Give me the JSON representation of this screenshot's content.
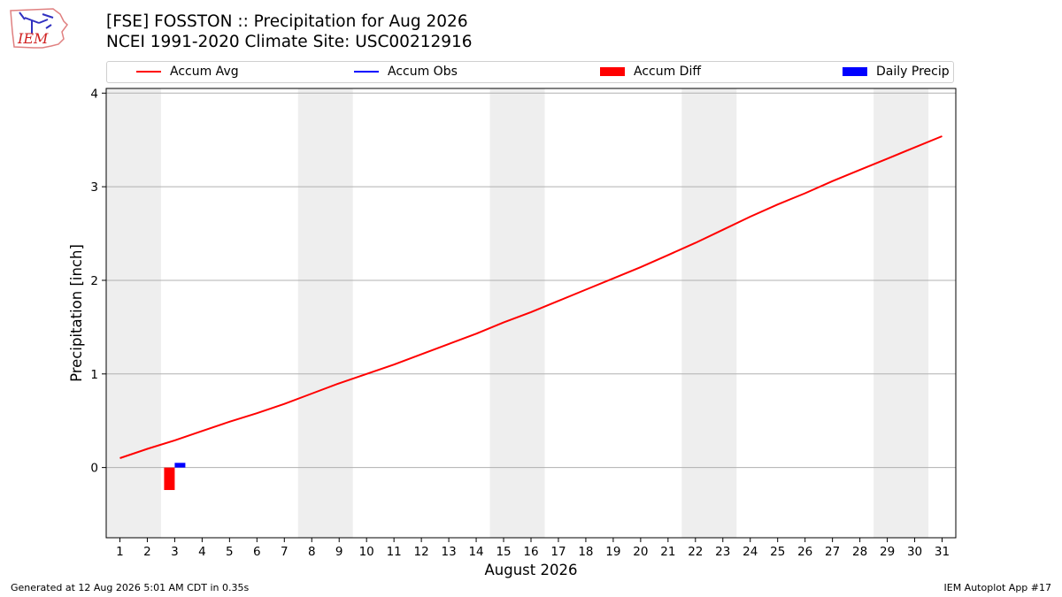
{
  "header": {
    "title_line1": "[FSE] FOSSTON :: Precipitation for Aug 2026",
    "title_line2": "NCEI 1991-2020 Climate Site: USC00212916",
    "logo_text": "IEM"
  },
  "legend": {
    "items": [
      {
        "label": "Accum Avg",
        "kind": "line",
        "color": "#ff0000"
      },
      {
        "label": "Accum Obs",
        "kind": "line",
        "color": "#0000ff"
      },
      {
        "label": "Accum Diff",
        "kind": "patch",
        "color": "#ff0000"
      },
      {
        "label": "Daily Precip",
        "kind": "patch",
        "color": "#0000ff"
      }
    ]
  },
  "footer": {
    "generated": "Generated at 12 Aug 2026 5:01 AM CDT in 0.35s",
    "app": "IEM Autoplot App #17"
  },
  "chart_data": {
    "type": "line",
    "xlabel": "August 2026",
    "ylabel": "Precipitation [inch]",
    "x": [
      1,
      2,
      3,
      4,
      5,
      6,
      7,
      8,
      9,
      10,
      11,
      12,
      13,
      14,
      15,
      16,
      17,
      18,
      19,
      20,
      21,
      22,
      23,
      24,
      25,
      26,
      27,
      28,
      29,
      30,
      31
    ],
    "xlim": [
      0.5,
      31.5
    ],
    "ylim": [
      -0.75,
      4.05
    ],
    "yticks": [
      0,
      1,
      2,
      3,
      4
    ],
    "grid": "horizontal",
    "weekend_shading": [
      [
        1,
        2
      ],
      [
        8,
        9
      ],
      [
        15,
        16
      ],
      [
        22,
        23
      ],
      [
        29,
        30
      ]
    ],
    "series": [
      {
        "name": "Accum Avg",
        "kind": "line",
        "color": "#ff0000",
        "values": [
          0.1,
          0.2,
          0.29,
          0.39,
          0.49,
          0.58,
          0.68,
          0.79,
          0.9,
          1.0,
          1.1,
          1.21,
          1.32,
          1.43,
          1.55,
          1.66,
          1.78,
          1.9,
          2.02,
          2.14,
          2.27,
          2.4,
          2.54,
          2.68,
          2.81,
          2.93,
          3.06,
          3.18,
          3.3,
          3.42,
          3.54
        ]
      },
      {
        "name": "Accum Diff",
        "kind": "bar",
        "color": "#ff0000",
        "points": [
          {
            "x": 3,
            "value": -0.24
          }
        ]
      },
      {
        "name": "Daily Precip",
        "kind": "bar",
        "color": "#0000ff",
        "points": [
          {
            "x": 3,
            "value": 0.05
          }
        ]
      }
    ]
  }
}
